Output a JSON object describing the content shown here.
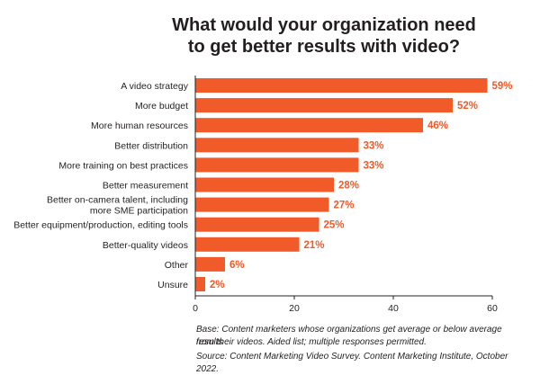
{
  "chart_data": {
    "type": "bar",
    "orientation": "horizontal",
    "title_lines": [
      "What would your organization need",
      "to get better results with video?"
    ],
    "categories": [
      [
        "A video strategy"
      ],
      [
        "More budget"
      ],
      [
        "More human resources"
      ],
      [
        "Better distribution"
      ],
      [
        "More training on best practices"
      ],
      [
        "Better measurement"
      ],
      [
        "Better on-camera talent, including",
        "more SME participation"
      ],
      [
        "Better equipment/production, editing tools"
      ],
      [
        "Better-quality videos"
      ],
      [
        "Other"
      ],
      [
        "Unsure"
      ]
    ],
    "values": [
      59,
      52,
      46,
      33,
      33,
      28,
      27,
      25,
      21,
      6,
      2
    ],
    "value_labels": [
      "59%",
      "52%",
      "46%",
      "33%",
      "33%",
      "28%",
      "27%",
      "25%",
      "21%",
      "6%",
      "2%"
    ],
    "xlim": [
      0,
      60
    ],
    "xticks": [
      "0",
      "20",
      "40",
      "60"
    ],
    "bar_color": "#f15a29",
    "grid": false
  },
  "notes": [
    "Base: Content marketers whose organizations get average or below average results",
    "from their videos. Aided list; multiple responses permitted.",
    "Source: Content Marketing Video Survey. Content Marketing Institute, October 2022."
  ]
}
